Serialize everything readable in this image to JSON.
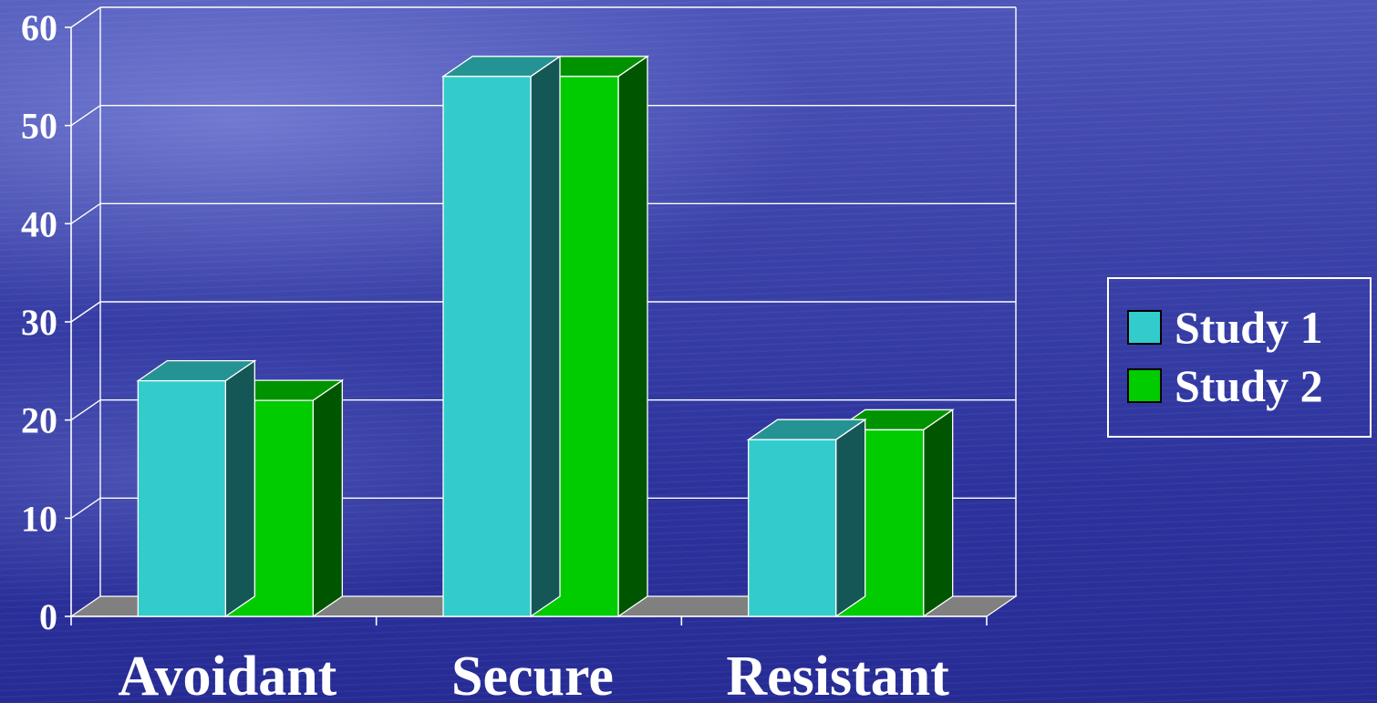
{
  "chart_data": {
    "type": "bar",
    "categories": [
      "Avoidant",
      "Secure",
      "Resistant"
    ],
    "series": [
      {
        "name": "Study 1",
        "values": [
          24,
          55,
          18
        ],
        "color": "#33cccc"
      },
      {
        "name": "Study 2",
        "values": [
          22,
          55,
          19
        ],
        "color": "#00cc00"
      }
    ],
    "y_ticks": [
      "0",
      "10",
      "20",
      "30",
      "40",
      "50",
      "60"
    ],
    "ylim": [
      0,
      60
    ],
    "style": "3d-clustered-column",
    "grid": true,
    "legend_position": "right"
  },
  "legend": {
    "items": [
      {
        "label": "Study 1",
        "color": "#33cccc"
      },
      {
        "label": "Study 2",
        "color": "#00cc00"
      }
    ]
  }
}
